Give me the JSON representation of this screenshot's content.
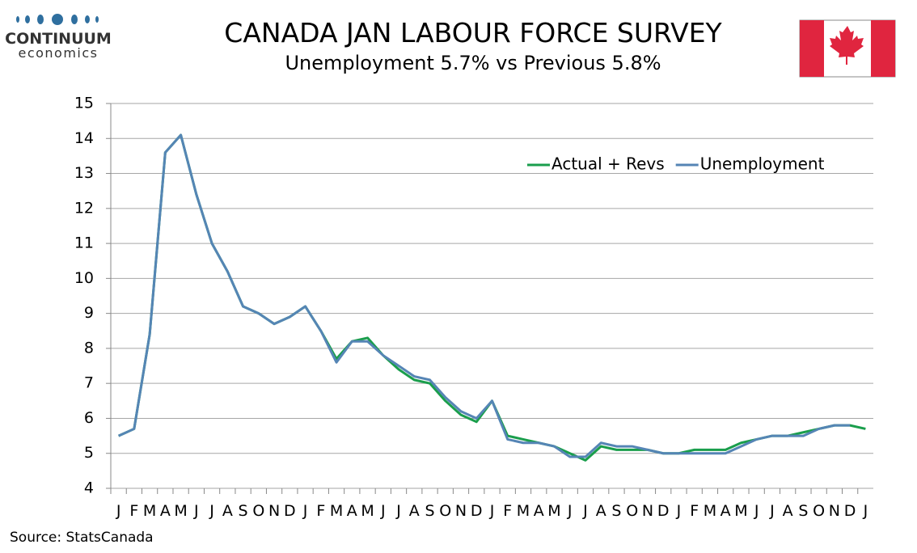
{
  "logo": {
    "name": "CONTINUUM",
    "tagline": "economics"
  },
  "source": "Source: StatsCanada",
  "chart_data": {
    "type": "line",
    "title": "CANADA JAN LABOUR FORCE SURVEY",
    "subtitle": "Unemployment  5.7% vs Previous 5.8%",
    "categories": [
      "J",
      "F",
      "M",
      "A",
      "M",
      "J",
      "J",
      "A",
      "S",
      "O",
      "N",
      "D",
      "J",
      "F",
      "M",
      "A",
      "M",
      "J",
      "J",
      "A",
      "S",
      "O",
      "N",
      "D",
      "J",
      "F",
      "M",
      "A",
      "M",
      "J",
      "J",
      "A",
      "S",
      "O",
      "N",
      "D",
      "J",
      "F",
      "M",
      "A",
      "M",
      "J",
      "J",
      "A",
      "S",
      "O",
      "N",
      "D",
      "J"
    ],
    "series": [
      {
        "name": "Actual + Revs",
        "color": "#1a9e4c",
        "values": [
          5.5,
          5.7,
          8.4,
          13.6,
          14.1,
          12.4,
          11.0,
          10.2,
          9.2,
          9.0,
          8.7,
          8.9,
          9.2,
          8.5,
          7.7,
          8.2,
          8.3,
          7.8,
          7.4,
          7.1,
          7.0,
          6.5,
          6.1,
          5.9,
          6.5,
          5.5,
          5.4,
          5.3,
          5.2,
          5.0,
          4.8,
          5.2,
          5.1,
          5.1,
          5.1,
          5.0,
          5.0,
          5.1,
          5.1,
          5.1,
          5.3,
          5.4,
          5.5,
          5.5,
          5.6,
          5.7,
          5.8,
          5.8,
          5.7
        ]
      },
      {
        "name": "Unemployment",
        "color": "#5585b5",
        "values": [
          5.5,
          5.7,
          8.4,
          13.6,
          14.1,
          12.4,
          11.0,
          10.2,
          9.2,
          9.0,
          8.7,
          8.9,
          9.2,
          8.5,
          7.6,
          8.2,
          8.2,
          7.8,
          7.5,
          7.2,
          7.1,
          6.6,
          6.2,
          6.0,
          6.5,
          5.4,
          5.3,
          5.3,
          5.2,
          4.9,
          4.9,
          5.3,
          5.2,
          5.2,
          5.1,
          5.0,
          5.0,
          5.0,
          5.0,
          5.0,
          5.2,
          5.4,
          5.5,
          5.5,
          5.5,
          5.7,
          5.8,
          5.8,
          null
        ]
      }
    ],
    "ylim": [
      4,
      15
    ],
    "yticks": [
      4,
      5,
      6,
      7,
      8,
      9,
      10,
      11,
      12,
      13,
      14,
      15
    ],
    "grid": true,
    "legend": "upper right"
  }
}
